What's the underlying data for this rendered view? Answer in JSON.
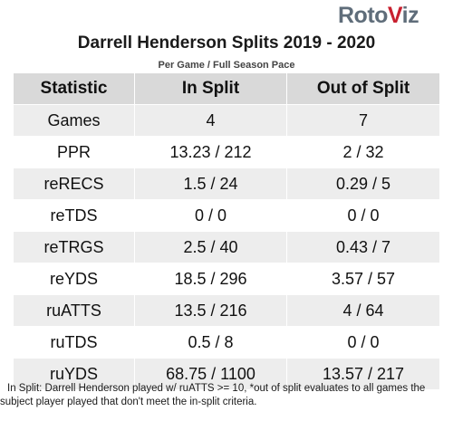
{
  "logo": {
    "part1": "Roto",
    "part2": "V",
    "part3": "iz"
  },
  "title": "Darrell Henderson Splits 2019 - 2020",
  "subtitle": "Per Game / Full Season Pace",
  "table": {
    "headers": [
      "Statistic",
      "In Split",
      "Out of Split"
    ],
    "rows": [
      [
        "Games",
        "4",
        "7"
      ],
      [
        "PPR",
        "13.23 / 212",
        "2 / 32"
      ],
      [
        "reRECS",
        "1.5 / 24",
        "0.29 / 5"
      ],
      [
        "reTDS",
        "0 / 0",
        "0 / 0"
      ],
      [
        "reTRGS",
        "2.5 / 40",
        "0.43 / 7"
      ],
      [
        "reYDS",
        "18.5 / 296",
        "3.57 / 57"
      ],
      [
        "ruATTS",
        "13.5 / 216",
        "4 / 64"
      ],
      [
        "ruTDS",
        "0.5 / 8",
        "0 / 0"
      ],
      [
        "ruYDS",
        "68.75 / 1100",
        "13.57 / 217"
      ]
    ]
  },
  "footnote": "In Split: Darrell Henderson played w/ ruATTS >= 10,  *out of split evaluates to all games the subject player played that don't meet the in-split criteria."
}
